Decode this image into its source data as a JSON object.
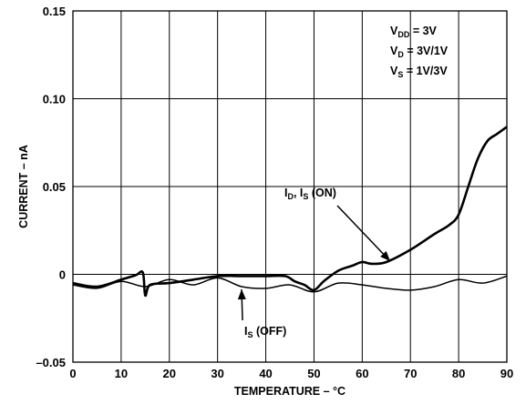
{
  "chart_data": {
    "type": "line",
    "title": "",
    "xlabel": "TEMPERATURE – °C",
    "ylabel": "CURRENT – nA",
    "xlim": [
      0,
      90
    ],
    "ylim": [
      -0.05,
      0.15
    ],
    "grid": true,
    "x_ticks": [
      "0",
      "10",
      "20",
      "30",
      "40",
      "50",
      "60",
      "70",
      "80",
      "90"
    ],
    "y_ticks": [
      "0.15",
      "0.10",
      "0.05",
      "0",
      "–0.05"
    ],
    "annotations": {
      "conditions": [
        {
          "main": "V",
          "sub": "DD",
          "rest": " = 3V"
        },
        {
          "main": "V",
          "sub": "D",
          "rest": " = 3V/1V"
        },
        {
          "main": "V",
          "sub": "S",
          "rest": " = 1V/3V"
        }
      ],
      "label_on": {
        "p1": "I",
        "s1": "D",
        "mid": ", I",
        "s2": "S",
        "tail": " (ON)"
      },
      "label_off": {
        "p1": "I",
        "s1": "S",
        "tail": " (OFF)"
      }
    },
    "series": [
      {
        "name": "I_D, I_S (ON)",
        "x": [
          0,
          5,
          10,
          13,
          14.5,
          15,
          16,
          20,
          25,
          30,
          35,
          40,
          44,
          46,
          48,
          50,
          52,
          55,
          58,
          60,
          62,
          65,
          70,
          75,
          78,
          80,
          82,
          84,
          86,
          88,
          90
        ],
        "y": [
          -0.005,
          -0.007,
          -0.003,
          -0.0005,
          0.001,
          -0.012,
          -0.006,
          -0.005,
          -0.003,
          -0.001,
          -0.001,
          -0.001,
          -0.001,
          -0.004,
          -0.006,
          -0.009,
          -0.004,
          0.002,
          0.005,
          0.007,
          0.006,
          0.007,
          0.014,
          0.023,
          0.028,
          0.034,
          0.05,
          0.066,
          0.076,
          0.08,
          0.084
        ]
      },
      {
        "name": "I_S (OFF)",
        "x": [
          0,
          5,
          10,
          15,
          20,
          25,
          30,
          35,
          40,
          45,
          50,
          55,
          60,
          65,
          70,
          75,
          80,
          85,
          90
        ],
        "y": [
          -0.006,
          -0.008,
          -0.004,
          -0.007,
          -0.003,
          -0.006,
          -0.002,
          -0.007,
          -0.008,
          -0.006,
          -0.01,
          -0.005,
          -0.006,
          -0.008,
          -0.009,
          -0.007,
          -0.003,
          -0.005,
          -0.001
        ]
      }
    ]
  }
}
